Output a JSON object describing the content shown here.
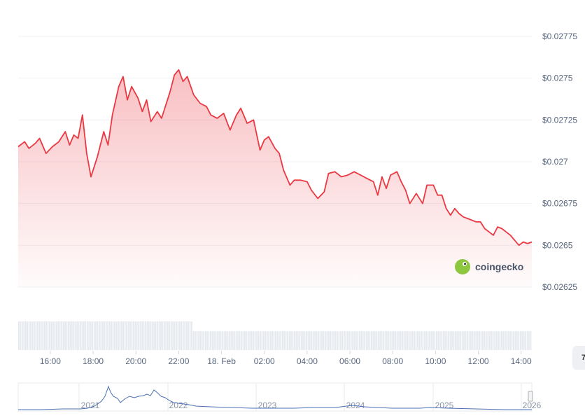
{
  "chart_data": {
    "type": "area",
    "currency_prefix": "$",
    "y_ticks": [
      "$0.02775",
      "$0.0275",
      "$0.02725",
      "$0.027",
      "$0.02675",
      "$0.0265",
      "$0.02625"
    ],
    "ylim": [
      0.02625,
      0.02775
    ],
    "x_ticks": [
      "16:00",
      "18:00",
      "20:00",
      "22:00",
      "18. Feb",
      "02:00",
      "04:00",
      "06:00",
      "08:00",
      "10:00",
      "12:00",
      "14:00"
    ],
    "x_range_hours": [
      14.5,
      38.5
    ],
    "series": [
      {
        "color": "#ea3943",
        "points": [
          [
            14.5,
            0.02709
          ],
          [
            14.8,
            0.02712
          ],
          [
            15.0,
            0.02708
          ],
          [
            15.3,
            0.02711
          ],
          [
            15.5,
            0.02714
          ],
          [
            15.8,
            0.02705
          ],
          [
            16.1,
            0.02709
          ],
          [
            16.4,
            0.02712
          ],
          [
            16.7,
            0.02718
          ],
          [
            16.9,
            0.0271
          ],
          [
            17.1,
            0.02716
          ],
          [
            17.3,
            0.02714
          ],
          [
            17.5,
            0.02728
          ],
          [
            17.7,
            0.02705
          ],
          [
            17.9,
            0.02691
          ],
          [
            18.2,
            0.02703
          ],
          [
            18.5,
            0.02718
          ],
          [
            18.7,
            0.0271
          ],
          [
            18.9,
            0.02728
          ],
          [
            19.2,
            0.02745
          ],
          [
            19.4,
            0.02751
          ],
          [
            19.6,
            0.02737
          ],
          [
            19.8,
            0.02745
          ],
          [
            20.1,
            0.02738
          ],
          [
            20.3,
            0.0273
          ],
          [
            20.5,
            0.02737
          ],
          [
            20.7,
            0.02724
          ],
          [
            21.0,
            0.0273
          ],
          [
            21.2,
            0.02726
          ],
          [
            21.4,
            0.02734
          ],
          [
            21.6,
            0.02742
          ],
          [
            21.8,
            0.02752
          ],
          [
            22.0,
            0.02755
          ],
          [
            22.2,
            0.02748
          ],
          [
            22.4,
            0.02751
          ],
          [
            22.7,
            0.0274
          ],
          [
            23.0,
            0.02735
          ],
          [
            23.3,
            0.02733
          ],
          [
            23.5,
            0.02728
          ],
          [
            23.8,
            0.02726
          ],
          [
            24.1,
            0.02729
          ],
          [
            24.4,
            0.02719
          ],
          [
            24.7,
            0.02728
          ],
          [
            24.9,
            0.02732
          ],
          [
            25.2,
            0.02723
          ],
          [
            25.5,
            0.02725
          ],
          [
            25.8,
            0.02707
          ],
          [
            26.0,
            0.02713
          ],
          [
            26.2,
            0.02715
          ],
          [
            26.5,
            0.02708
          ],
          [
            26.7,
            0.02705
          ],
          [
            26.9,
            0.02695
          ],
          [
            27.2,
            0.02686
          ],
          [
            27.4,
            0.02689
          ],
          [
            27.7,
            0.02689
          ],
          [
            28.0,
            0.02688
          ],
          [
            28.2,
            0.02683
          ],
          [
            28.5,
            0.02678
          ],
          [
            28.8,
            0.02682
          ],
          [
            29.0,
            0.02693
          ],
          [
            29.3,
            0.02694
          ],
          [
            29.6,
            0.02691
          ],
          [
            29.9,
            0.02692
          ],
          [
            30.2,
            0.02694
          ],
          [
            30.5,
            0.02692
          ],
          [
            30.8,
            0.0269
          ],
          [
            31.1,
            0.02688
          ],
          [
            31.3,
            0.0268
          ],
          [
            31.5,
            0.02691
          ],
          [
            31.7,
            0.02684
          ],
          [
            31.9,
            0.02692
          ],
          [
            32.2,
            0.02694
          ],
          [
            32.4,
            0.02688
          ],
          [
            32.6,
            0.02683
          ],
          [
            32.8,
            0.02675
          ],
          [
            33.1,
            0.02681
          ],
          [
            33.4,
            0.02675
          ],
          [
            33.6,
            0.02686
          ],
          [
            33.9,
            0.02686
          ],
          [
            34.1,
            0.0268
          ],
          [
            34.3,
            0.0268
          ],
          [
            34.5,
            0.02672
          ],
          [
            34.7,
            0.02668
          ],
          [
            34.9,
            0.02672
          ],
          [
            35.1,
            0.02669
          ],
          [
            35.3,
            0.02667
          ],
          [
            35.5,
            0.02666
          ],
          [
            35.7,
            0.02665
          ],
          [
            35.9,
            0.02664
          ],
          [
            36.1,
            0.02664
          ],
          [
            36.3,
            0.0266
          ],
          [
            36.5,
            0.02658
          ],
          [
            36.7,
            0.02656
          ],
          [
            36.9,
            0.02661
          ],
          [
            37.1,
            0.0266
          ],
          [
            37.3,
            0.02658
          ],
          [
            37.5,
            0.02656
          ],
          [
            37.7,
            0.02653
          ],
          [
            37.9,
            0.0265
          ],
          [
            38.1,
            0.02652
          ],
          [
            38.3,
            0.02651
          ],
          [
            38.5,
            0.02652
          ]
        ]
      }
    ],
    "volume_bars": 300,
    "navigator": {
      "type": "line",
      "color": "#4a6fb5",
      "x_ticks": [
        "2021",
        "2022",
        "2023",
        "2024",
        "2025",
        "2026"
      ]
    },
    "grid": true
  },
  "watermark": {
    "text": "coingecko",
    "icon": "coingecko-gecko-logo"
  },
  "side_button": {
    "label": "7"
  }
}
